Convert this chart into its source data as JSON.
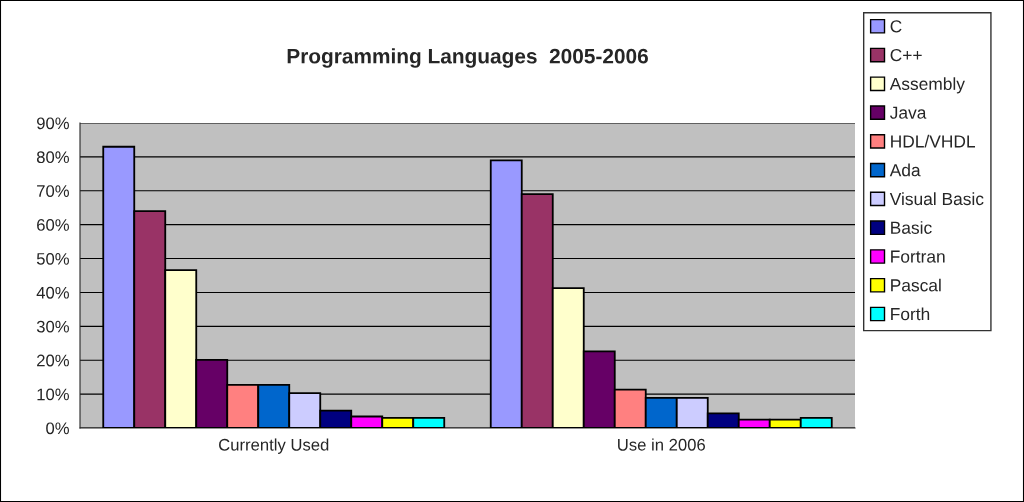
{
  "chart_data": {
    "type": "bar",
    "title": "Programming Languages  2005-2006",
    "categories": [
      "Currently Used",
      "Use in 2006"
    ],
    "series": [
      {
        "name": "C",
        "color": "#9999ff",
        "values": [
          83,
          79
        ]
      },
      {
        "name": "C++",
        "color": "#993366",
        "values": [
          64,
          69
        ]
      },
      {
        "name": "Assembly",
        "color": "#ffffcc",
        "values": [
          46.6,
          41.3
        ]
      },
      {
        "name": "Java",
        "color": "#660066",
        "values": [
          20.1,
          22.6
        ]
      },
      {
        "name": "HDL/VHDL",
        "color": "#ff8080",
        "values": [
          12.7,
          11.3
        ]
      },
      {
        "name": "Ada",
        "color": "#0066cc",
        "values": [
          12.7,
          8.9
        ]
      },
      {
        "name": "Visual Basic",
        "color": "#ccccff",
        "values": [
          10.3,
          8.9
        ]
      },
      {
        "name": "Basic",
        "color": "#000080",
        "values": [
          5.1,
          4.3
        ]
      },
      {
        "name": "Fortran",
        "color": "#ff00ff",
        "values": [
          3.4,
          2.5
        ]
      },
      {
        "name": "Pascal",
        "color": "#ffff00",
        "values": [
          3.0,
          2.5
        ]
      },
      {
        "name": "Forth",
        "color": "#00ffff",
        "values": [
          3.0,
          3.0
        ]
      }
    ],
    "ylim": [
      0,
      90
    ],
    "yticks": [
      {
        "value": 0,
        "label": "0%"
      },
      {
        "value": 10,
        "label": "10%"
      },
      {
        "value": 20,
        "label": "20%"
      },
      {
        "value": 30,
        "label": "30%"
      },
      {
        "value": 40,
        "label": "40%"
      },
      {
        "value": 50,
        "label": "50%"
      },
      {
        "value": 60,
        "label": "60%"
      },
      {
        "value": 70,
        "label": "70%"
      },
      {
        "value": 80,
        "label": "80%"
      },
      {
        "value": 90,
        "label": "90%"
      }
    ],
    "grid": "y",
    "legend": "right"
  }
}
